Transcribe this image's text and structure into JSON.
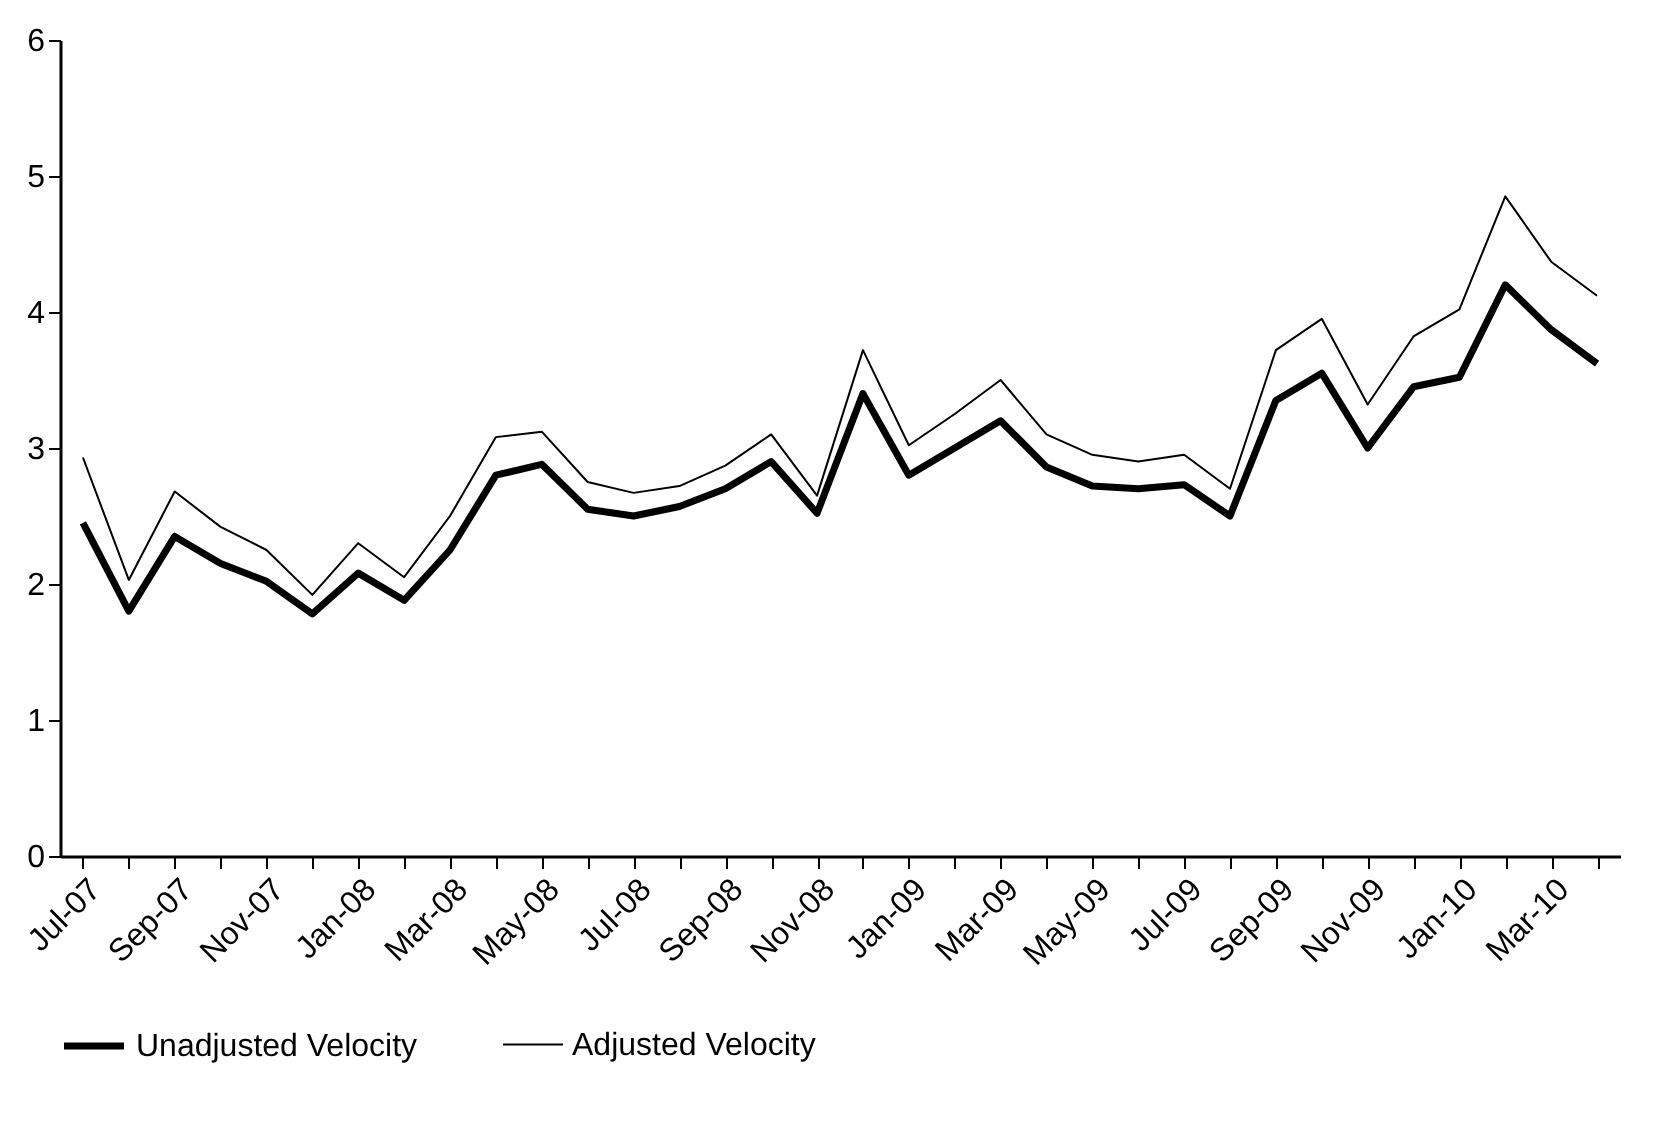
{
  "chart_data": {
    "type": "line",
    "categories": [
      "Jul-07",
      null,
      "Sep-07",
      null,
      "Nov-07",
      null,
      "Jan-08",
      null,
      "Mar-08",
      null,
      "May-08",
      null,
      "Jul-08",
      null,
      "Sep-08",
      null,
      "Nov-08",
      null,
      "Jan-09",
      null,
      "Mar-09",
      null,
      "May-09",
      null,
      "Jul-09",
      null,
      "Sep-09",
      null,
      "Nov-09",
      null,
      "Jan-10",
      null,
      "Mar-10",
      null
    ],
    "series": [
      {
        "name": "Unadjusted Velocity",
        "color": "#000000",
        "values": [
          2.45,
          1.8,
          2.35,
          2.15,
          2.02,
          1.78,
          2.08,
          1.88,
          2.25,
          2.8,
          2.88,
          2.55,
          2.5,
          2.57,
          2.7,
          2.9,
          2.52,
          3.4,
          2.8,
          3.0,
          3.2,
          2.86,
          2.72,
          2.7,
          2.73,
          2.5,
          3.35,
          3.55,
          3.0,
          3.45,
          3.52,
          4.2,
          3.87,
          3.62
        ]
      },
      {
        "name": "Adjusted Velocity",
        "color": "#000000",
        "values": [
          2.93,
          2.03,
          2.68,
          2.42,
          2.25,
          1.92,
          2.3,
          2.05,
          2.5,
          3.08,
          3.12,
          2.75,
          2.67,
          2.72,
          2.87,
          3.1,
          2.65,
          3.72,
          3.02,
          3.25,
          3.5,
          3.1,
          2.95,
          2.9,
          2.95,
          2.7,
          3.72,
          3.95,
          3.32,
          3.82,
          4.02,
          4.85,
          4.37,
          4.12
        ]
      }
    ],
    "ylim": [
      0,
      6
    ],
    "yticks": [
      0,
      1,
      2,
      3,
      4,
      5,
      6
    ],
    "grid": false,
    "legend": "bottom",
    "marker": "none"
  }
}
